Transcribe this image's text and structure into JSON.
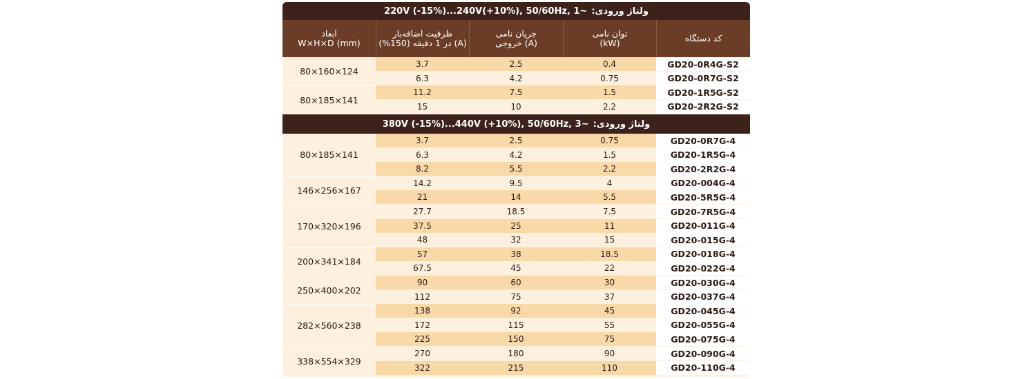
{
  "header": {
    "dims": [
      "ابعاد",
      "W×H×D (mm)"
    ],
    "overload": [
      "ظرفیت اضافه‌بار",
      "در 1 دقیقه (150%) (A)"
    ],
    "current": [
      "جریان نامی",
      "خروجی (A)"
    ],
    "power": [
      "توان نامی",
      "(kW)"
    ],
    "code": "کد دستگاه"
  },
  "groups": [
    {
      "band_label": "ولتاژ ورودی:",
      "band_spec": "220V (-15%)...240V(+10%), 50/60Hz, 1~",
      "dims": [
        {
          "text": "80×160×124",
          "rows": 2
        },
        {
          "text": "80×185×141",
          "rows": 2
        }
      ],
      "rows": [
        {
          "code": "GD20-0R4G-S2",
          "power": "0.4",
          "current": "2.5",
          "overload": "3.7"
        },
        {
          "code": "GD20-0R7G-S2",
          "power": "0.75",
          "current": "4.2",
          "overload": "6.3"
        },
        {
          "code": "GD20-1R5G-S2",
          "power": "1.5",
          "current": "7.5",
          "overload": "11.2"
        },
        {
          "code": "GD20-2R2G-S2",
          "power": "2.2",
          "current": "10",
          "overload": "15"
        }
      ]
    },
    {
      "band_label": "ولتاژ ورودی:",
      "band_spec": "380V (-15%)...440V (+10%), 50/60Hz, 3~",
      "dims": [
        {
          "text": "80×185×141",
          "rows": 3
        },
        {
          "text": "146×256×167",
          "rows": 2
        },
        {
          "text": "170×320×196",
          "rows": 3
        },
        {
          "text": "200×341×184",
          "rows": 2
        },
        {
          "text": "250×400×202",
          "rows": 2
        },
        {
          "text": "282×560×238",
          "rows": 3
        },
        {
          "text": "338×554×329",
          "rows": 2
        }
      ],
      "rows": [
        {
          "code": "GD20-0R7G-4",
          "power": "0.75",
          "current": "2.5",
          "overload": "3.7"
        },
        {
          "code": "GD20-1R5G-4",
          "power": "1.5",
          "current": "4.2",
          "overload": "6.3"
        },
        {
          "code": "GD20-2R2G-4",
          "power": "2.2",
          "current": "5.5",
          "overload": "8.2"
        },
        {
          "code": "GD20-004G-4",
          "power": "4",
          "current": "9.5",
          "overload": "14.2"
        },
        {
          "code": "GD20-5R5G-4",
          "power": "5.5",
          "current": "14",
          "overload": "21"
        },
        {
          "code": "GD20-7R5G-4",
          "power": "7.5",
          "current": "18.5",
          "overload": "27.7"
        },
        {
          "code": "GD20-011G-4",
          "power": "11",
          "current": "25",
          "overload": "37.5"
        },
        {
          "code": "GD20-015G-4",
          "power": "15",
          "current": "32",
          "overload": "48"
        },
        {
          "code": "GD20-018G-4",
          "power": "18.5",
          "current": "38",
          "overload": "57"
        },
        {
          "code": "GD20-022G-4",
          "power": "22",
          "current": "45",
          "overload": "67.5"
        },
        {
          "code": "GD20-030G-4",
          "power": "30",
          "current": "60",
          "overload": "90"
        },
        {
          "code": "GD20-037G-4",
          "power": "37",
          "current": "75",
          "overload": "112"
        },
        {
          "code": "GD20-045G-4",
          "power": "45",
          "current": "92",
          "overload": "138"
        },
        {
          "code": "GD20-055G-4",
          "power": "55",
          "current": "115",
          "overload": "172"
        },
        {
          "code": "GD20-075G-4",
          "power": "75",
          "current": "150",
          "overload": "225"
        },
        {
          "code": "GD20-090G-4",
          "power": "90",
          "current": "180",
          "overload": "270"
        },
        {
          "code": "GD20-110G-4",
          "power": "110",
          "current": "215",
          "overload": "322"
        }
      ]
    }
  ]
}
